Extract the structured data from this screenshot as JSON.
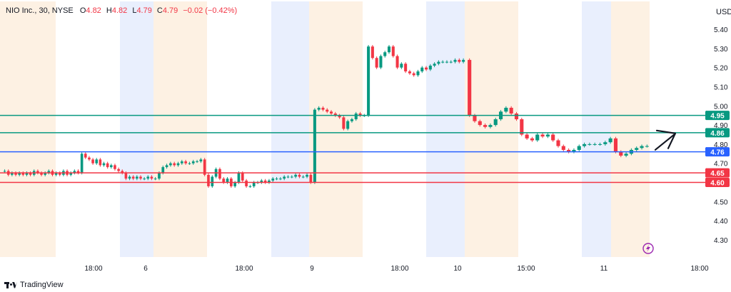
{
  "header": {
    "symbol": "NIO Inc., 30, NYSE",
    "o_label": "O",
    "o": "4.82",
    "h_label": "H",
    "h": "4.82",
    "l_label": "L",
    "l": "4.79",
    "c_label": "C",
    "c": "4.79",
    "change": "−0.02 (−0.42%)"
  },
  "brand": {
    "name": "TradingView"
  },
  "colors": {
    "up": "#089981",
    "down": "#f23645",
    "session_pre": "#fdf1e3",
    "session_post": "#e9effd",
    "level_green": "#089981",
    "level_blue": "#2962ff",
    "level_red": "#f23645"
  },
  "chart_data": {
    "type": "candlestick",
    "currency": "USD",
    "ylim": [
      4.2,
      5.48
    ],
    "y_ticks": [
      "5.40",
      "5.30",
      "5.20",
      "5.10",
      "5.00",
      "4.90",
      "4.80",
      "4.70",
      "4.60",
      "4.50",
      "4.40",
      "4.30"
    ],
    "x_labels": [
      "18:00",
      "6",
      "18:00",
      "9",
      "18:00",
      "10",
      "15:00",
      "11",
      "18:00"
    ],
    "levels": [
      {
        "value": 4.95,
        "label": "4.95",
        "color": "#089981"
      },
      {
        "value": 4.86,
        "label": "4.86",
        "color": "#089981"
      },
      {
        "value": 4.76,
        "label": "4.76",
        "color": "#2962ff"
      },
      {
        "value": 4.65,
        "label": "4.65",
        "color": "#f23645"
      },
      {
        "value": 4.6,
        "label": "4.60",
        "color": "#f23645"
      }
    ],
    "annotation": "arrow pointing up-right at price ~4.86",
    "segments": [
      {
        "closes": [
          4.66,
          4.64,
          4.65,
          4.64,
          4.65,
          4.64,
          4.65,
          4.64,
          4.66,
          4.65,
          4.64,
          4.65,
          4.66,
          4.64,
          4.65,
          4.64,
          4.66,
          4.64,
          4.65,
          4.66,
          4.65,
          4.75,
          4.73,
          4.72,
          4.7,
          4.72,
          4.69,
          4.7,
          4.68,
          4.69,
          4.67,
          4.66,
          4.65,
          4.62,
          4.63,
          4.62,
          4.63,
          4.62,
          4.62,
          4.63,
          4.62
        ]
      },
      {
        "closes": [
          4.62,
          4.65,
          4.68,
          4.69,
          4.7,
          4.69,
          4.7,
          4.71,
          4.7,
          4.7,
          4.71,
          4.71,
          4.72,
          4.64,
          4.58,
          4.63,
          4.67,
          4.62,
          4.6,
          4.62,
          4.58,
          4.6,
          4.65,
          4.61,
          4.58,
          4.58,
          4.6,
          4.6,
          4.61,
          4.6,
          4.61,
          4.62,
          4.62,
          4.62,
          4.63,
          4.63,
          4.63,
          4.64,
          4.63,
          4.63,
          4.64,
          4.6
        ]
      },
      {
        "closes": [
          4.98,
          4.99,
          4.98,
          4.97,
          4.96,
          4.95,
          4.94,
          4.88,
          4.92,
          4.93,
          4.96,
          4.95,
          4.95,
          5.31,
          5.25,
          5.2,
          5.26,
          5.28,
          5.31,
          5.26,
          5.2,
          5.22,
          5.18,
          5.17,
          5.16,
          5.18,
          5.2,
          5.19,
          5.21,
          5.22,
          5.23,
          5.23,
          5.23,
          5.23,
          5.24,
          5.23,
          5.24
        ]
      },
      {
        "closes": [
          4.95,
          4.92,
          4.9,
          4.89,
          4.9,
          4.93,
          4.97,
          4.99,
          4.96,
          4.93,
          4.85,
          4.83,
          4.82,
          4.85,
          4.84,
          4.85,
          4.82,
          4.79,
          4.77,
          4.76,
          4.77,
          4.79,
          4.8,
          4.8,
          4.8,
          4.8,
          4.81,
          4.83,
          4.76,
          4.74,
          4.75,
          4.77,
          4.78,
          4.79,
          4.79
        ]
      }
    ]
  }
}
